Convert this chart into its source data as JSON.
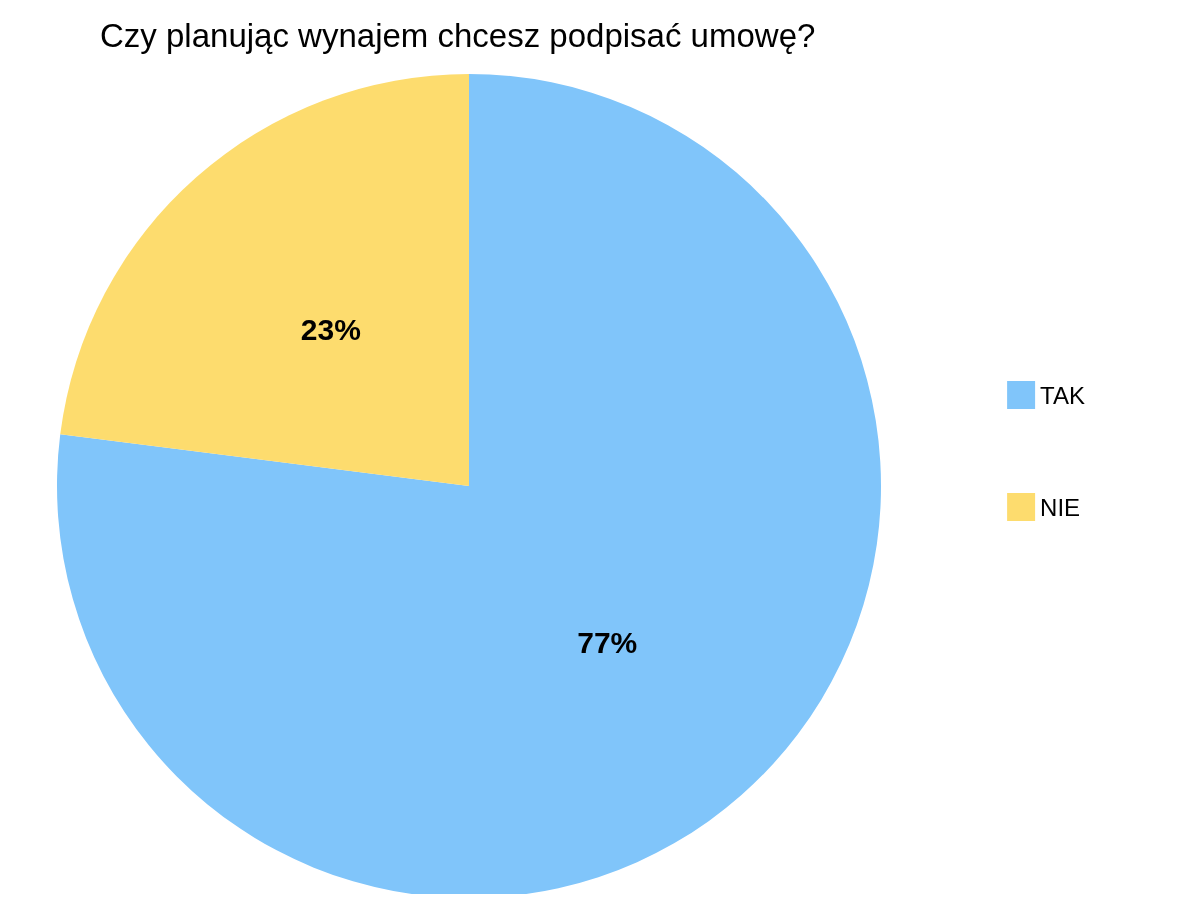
{
  "chart_data": {
    "type": "pie",
    "title": "Czy planując wynajem chcesz podpisać umowę?",
    "categories": [
      "TAK",
      "NIE"
    ],
    "values": [
      77,
      23
    ],
    "colors": [
      "#80c5fa",
      "#fddc6e"
    ],
    "value_labels": [
      "77%",
      "23%"
    ],
    "legend": "right"
  }
}
